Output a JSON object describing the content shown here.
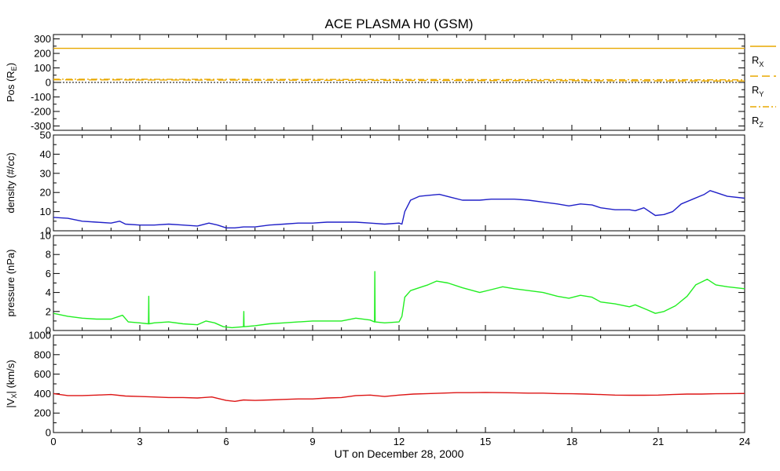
{
  "chart_data": {
    "title": "ACE PLASMA H0 (GSM)",
    "xlabel": "UT on December 28, 2000",
    "xlim": [
      0,
      24
    ],
    "xticks": [
      0,
      3,
      6,
      9,
      12,
      15,
      18,
      21,
      24
    ],
    "xminor_step": 1,
    "panels": [
      {
        "id": "pos",
        "type": "line",
        "ylabel": "Pos (R",
        "ylabel_sub": "E",
        "ylabel_end": ")",
        "ylim": [
          -330,
          330
        ],
        "yticks": [
          -300,
          -200,
          -100,
          0,
          100,
          200,
          300
        ],
        "yminor_step": 50,
        "series": [
          {
            "name": "R",
            "name_sub": "X",
            "color": "#e8a800",
            "dash": "",
            "x": [
              0,
              24
            ],
            "y": [
              235,
              235
            ]
          },
          {
            "name": "R",
            "name_sub": "Y",
            "color": "#e8a800",
            "dash": "10,5",
            "x": [
              0,
              24
            ],
            "y": [
              18,
              10
            ]
          },
          {
            "name": "R",
            "name_sub": "Z",
            "color": "#e8a800",
            "dash": "8,3,2,3",
            "x": [
              0,
              24
            ],
            "y": [
              22,
              18
            ]
          }
        ],
        "reference_lines": [
          {
            "y": 0,
            "color": "#000000",
            "dash": "2,2"
          }
        ]
      },
      {
        "id": "density",
        "type": "line",
        "ylabel": "density (#/cc)",
        "ylim": [
          0,
          50
        ],
        "yticks": [
          0,
          10,
          20,
          30,
          40,
          50
        ],
        "yminor_step": 5,
        "series": [
          {
            "name": "density",
            "color": "#2020c8",
            "x": [
              0,
              0.5,
              1,
              1.5,
              2,
              2.3,
              2.5,
              3,
              3.5,
              4,
              4.5,
              5,
              5.4,
              5.7,
              6,
              6.3,
              6.6,
              7,
              7.5,
              8,
              8.5,
              9,
              9.5,
              10,
              10.5,
              11,
              11.5,
              12,
              12.1,
              12.2,
              12.4,
              12.7,
              13,
              13.4,
              13.8,
              14.2,
              14.8,
              15.2,
              15.6,
              16,
              16.5,
              17,
              17.5,
              17.9,
              18.3,
              18.7,
              19,
              19.5,
              20,
              20.2,
              20.5,
              20.9,
              21.2,
              21.5,
              21.8,
              22.2,
              22.6,
              22.8,
              23,
              23.4,
              24
            ],
            "y": [
              7,
              6.5,
              5,
              4.5,
              4,
              5,
              3.5,
              3,
              3,
              3.5,
              3,
              2.5,
              4,
              3,
              1.5,
              1.5,
              2,
              2,
              3,
              3.5,
              4,
              4,
              4.5,
              4.5,
              4.5,
              4,
              3.5,
              4,
              3.5,
              10,
              16,
              18,
              18.5,
              19,
              17.5,
              16,
              16,
              16.5,
              16.5,
              16.5,
              16,
              15,
              14,
              13,
              14,
              13.5,
              12,
              11,
              11,
              10.5,
              12,
              8,
              8.5,
              10,
              14,
              16.5,
              19,
              21,
              20,
              18,
              17
            ]
          }
        ]
      },
      {
        "id": "pressure",
        "type": "line",
        "ylabel": "pressure (nPa)",
        "ylim": [
          0,
          10
        ],
        "yticks": [
          0,
          2,
          4,
          6,
          8,
          10
        ],
        "yminor_step": 1,
        "series": [
          {
            "name": "pressure",
            "color": "#22ee22",
            "x": [
              0,
              0.5,
              1,
              1.5,
              2,
              2.4,
              2.6,
              3,
              3.3,
              3.31,
              3.32,
              3.5,
              4,
              4.5,
              5,
              5.3,
              5.6,
              5.9,
              6.2,
              6.6,
              6.61,
              6.62,
              7,
              7.5,
              8,
              8.5,
              9,
              9.5,
              10,
              10.5,
              11,
              11.15,
              11.16,
              11.17,
              11.5,
              12,
              12.1,
              12.2,
              12.4,
              12.8,
              13,
              13.3,
              13.7,
              14.2,
              14.8,
              15.2,
              15.6,
              16,
              16.5,
              17,
              17.5,
              17.9,
              18.3,
              18.7,
              19,
              19.5,
              20,
              20.2,
              20.6,
              20.9,
              21.2,
              21.6,
              22,
              22.3,
              22.7,
              23,
              23.4,
              24
            ],
            "y": [
              1.8,
              1.5,
              1.3,
              1.2,
              1.2,
              1.6,
              0.9,
              0.8,
              0.7,
              3.6,
              0.7,
              0.8,
              0.9,
              0.7,
              0.6,
              1,
              0.8,
              0.4,
              0.3,
              0.4,
              2,
              0.4,
              0.5,
              0.7,
              0.8,
              0.9,
              1,
              1,
              1,
              1.3,
              1.1,
              0.9,
              6.2,
              0.9,
              0.8,
              0.9,
              1.5,
              3.5,
              4.2,
              4.6,
              4.8,
              5.2,
              5,
              4.5,
              4,
              4.3,
              4.6,
              4.4,
              4.2,
              4,
              3.6,
              3.4,
              3.7,
              3.5,
              3,
              2.8,
              2.5,
              2.7,
              2.2,
              1.8,
              2,
              2.6,
              3.6,
              4.8,
              5.4,
              4.8,
              4.6,
              4.4
            ]
          }
        ]
      },
      {
        "id": "vx",
        "type": "line",
        "ylabel": "|V",
        "ylabel_sub": "X",
        "ylabel_end": "| (km/s)",
        "ylim": [
          0,
          1000
        ],
        "yticks": [
          0,
          200,
          400,
          600,
          800,
          1000
        ],
        "yminor_step": 100,
        "series": [
          {
            "name": "|Vx|",
            "color": "#dd1515",
            "x": [
              0,
              0.5,
              1,
              1.5,
              2,
              2.5,
              3,
              3.5,
              4,
              4.5,
              5,
              5.5,
              6,
              6.3,
              6.6,
              7,
              7.5,
              8,
              8.5,
              9,
              9.5,
              10,
              10.5,
              11,
              11.5,
              12,
              12.5,
              13,
              13.5,
              14,
              14.5,
              15,
              15.5,
              16,
              16.5,
              17,
              17.5,
              18,
              18.5,
              19,
              19.5,
              20,
              20.5,
              21,
              21.5,
              22,
              22.5,
              23,
              23.5,
              24
            ],
            "y": [
              400,
              380,
              380,
              385,
              390,
              375,
              370,
              365,
              360,
              360,
              355,
              365,
              330,
              320,
              335,
              330,
              335,
              340,
              345,
              345,
              355,
              360,
              380,
              385,
              370,
              385,
              395,
              400,
              405,
              410,
              410,
              412,
              410,
              408,
              405,
              405,
              400,
              398,
              395,
              390,
              385,
              383,
              383,
              385,
              390,
              395,
              395,
              398,
              400,
              402
            ]
          }
        ]
      }
    ]
  }
}
